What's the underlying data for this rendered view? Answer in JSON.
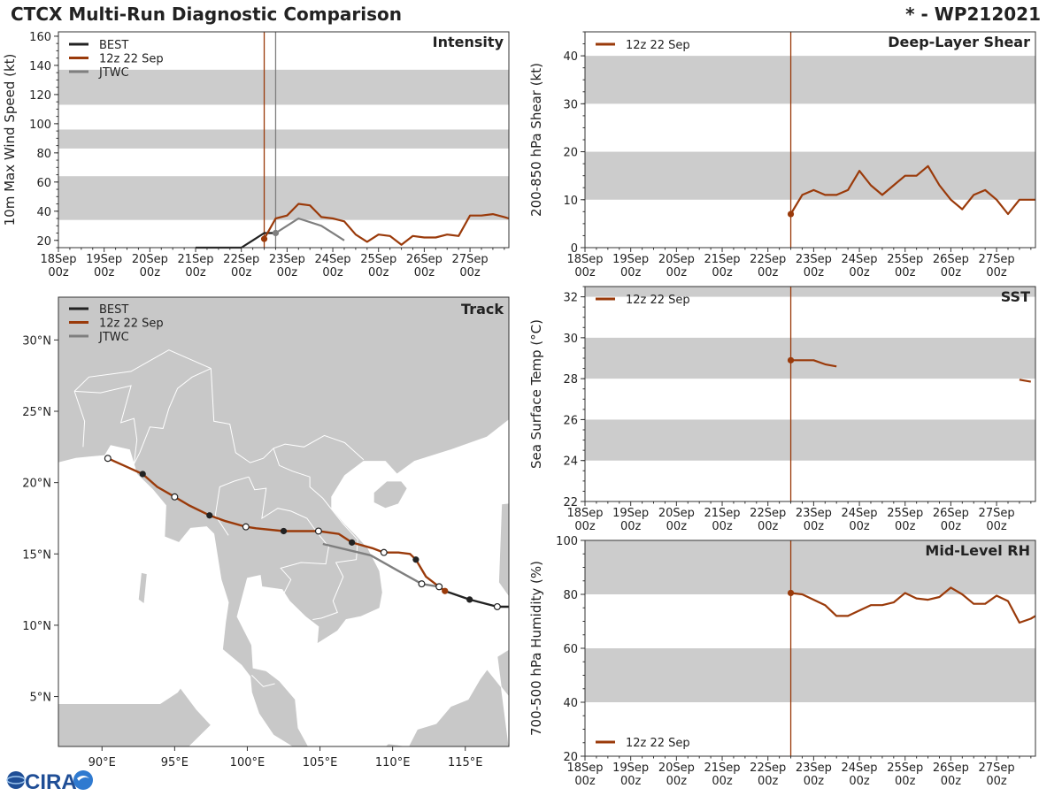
{
  "header": {
    "title": "CTCX Multi-Run Diagnostic Comparison",
    "storm": "* - WP212021"
  },
  "colors": {
    "best": "#222222",
    "run": "#9a3a0a",
    "jtwc": "#7f7f7f",
    "band": "#cccccc",
    "land": "#c8c8c8"
  },
  "time_ticks": [
    "18Sep\n00z",
    "19Sep\n00z",
    "20Sep\n00z",
    "21Sep\n00z",
    "22Sep\n00z",
    "23Sep\n00z",
    "24Sep\n00z",
    "25Sep\n00z",
    "26Sep\n00z",
    "27Sep\n00z"
  ],
  "logo_text": "CIRA",
  "chart_data": [
    {
      "id": "intensity",
      "type": "line",
      "title": "Intensity",
      "ylabel": "10m Max Wind Speed (kt)",
      "xlim": [
        0,
        9.85
      ],
      "ylim": [
        15,
        163
      ],
      "yticks": [
        20,
        40,
        60,
        80,
        100,
        120,
        140,
        160
      ],
      "bands": [
        [
          34,
          64
        ],
        [
          83,
          96
        ],
        [
          113,
          137
        ]
      ],
      "legend": [
        "BEST",
        "12z 22 Sep",
        "JTWC"
      ],
      "vlines": [
        {
          "x": 4.5,
          "series": "run"
        },
        {
          "x": 4.75,
          "series": "jtwc"
        }
      ],
      "series": [
        {
          "name": "BEST",
          "key": "best",
          "x": [
            3,
            3.25,
            3.5,
            3.75,
            4,
            4.25,
            4.5,
            4.75
          ],
          "y": [
            15,
            15,
            15,
            15,
            15,
            20,
            25,
            25
          ]
        },
        {
          "name": "12z 22 Sep",
          "key": "run",
          "x": [
            4.5,
            4.75,
            5,
            5.25,
            5.5,
            5.75,
            6,
            6.25,
            6.5,
            6.75,
            7,
            7.25,
            7.5,
            7.75,
            8,
            8.25,
            8.5,
            8.75,
            9,
            9.25,
            9.5,
            9.75,
            9.85
          ],
          "y": [
            21,
            35,
            37,
            45,
            44,
            36,
            35,
            33,
            24,
            19,
            24,
            23,
            17,
            23,
            22,
            22,
            24,
            23,
            37,
            37,
            38,
            36,
            35
          ],
          "first_marker": true
        },
        {
          "name": "JTWC",
          "key": "jtwc",
          "x": [
            4.75,
            5.25,
            5.75,
            6.25
          ],
          "y": [
            25,
            35,
            30,
            20
          ],
          "first_marker": true
        }
      ]
    },
    {
      "id": "shear",
      "type": "line",
      "title": "Deep-Layer Shear",
      "ylabel": "200-850 hPa Shear (kt)",
      "xlim": [
        0,
        9.85
      ],
      "ylim": [
        0,
        45
      ],
      "yticks": [
        0,
        10,
        20,
        30,
        40
      ],
      "bands": [
        [
          10,
          20
        ],
        [
          30,
          40
        ]
      ],
      "legend": [
        "12z 22 Sep"
      ],
      "legend_pos": "top-left",
      "vlines": [
        {
          "x": 4.5,
          "series": "run"
        }
      ],
      "series": [
        {
          "name": "12z 22 Sep",
          "key": "run",
          "x": [
            4.5,
            4.75,
            5,
            5.25,
            5.5,
            5.75,
            6,
            6.25,
            6.5,
            6.75,
            7,
            7.25,
            7.5,
            7.75,
            8,
            8.25,
            8.5,
            8.75,
            9,
            9.25,
            9.5,
            9.75,
            9.85
          ],
          "y": [
            7,
            11,
            12,
            11,
            11,
            12,
            16,
            13,
            11,
            13,
            15,
            15,
            17,
            13,
            10,
            8,
            11,
            12,
            10,
            7,
            10,
            10,
            10
          ],
          "first_marker": true
        }
      ]
    },
    {
      "id": "sst",
      "type": "line",
      "title": "SST",
      "ylabel": "Sea Surface Temp (°C)",
      "xlim": [
        0,
        9.85
      ],
      "ylim": [
        22,
        32.5
      ],
      "yticks": [
        22,
        24,
        26,
        28,
        30,
        32
      ],
      "bands": [
        [
          24,
          26
        ],
        [
          28,
          30
        ],
        [
          32,
          32.5
        ]
      ],
      "legend": [
        "12z 22 Sep"
      ],
      "legend_pos": "top-left",
      "vlines": [
        {
          "x": 4.5,
          "series": "run"
        }
      ],
      "series": [
        {
          "name": "12z 22 Sep",
          "key": "run",
          "x": [
            4.5,
            4.75,
            5,
            5.25,
            5.5
          ],
          "y": [
            28.9,
            28.9,
            28.9,
            28.7,
            28.6
          ],
          "first_marker": true
        },
        {
          "name": "12z 22 Sep (late)",
          "key": "run",
          "x": [
            9.5,
            9.75
          ],
          "y": [
            27.95,
            27.85
          ]
        }
      ]
    },
    {
      "id": "rh",
      "type": "line",
      "title": "Mid-Level RH",
      "ylabel": "700-500 hPa Humidity (%)",
      "xlim": [
        0,
        9.85
      ],
      "ylim": [
        20,
        100
      ],
      "yticks": [
        20,
        40,
        60,
        80,
        100
      ],
      "bands": [
        [
          40,
          60
        ],
        [
          80,
          100
        ]
      ],
      "legend": [
        "12z 22 Sep"
      ],
      "legend_pos": "bottom-left",
      "vlines": [
        {
          "x": 4.5,
          "series": "run"
        }
      ],
      "series": [
        {
          "name": "12z 22 Sep",
          "key": "run",
          "x": [
            4.5,
            4.75,
            5,
            5.25,
            5.5,
            5.75,
            6,
            6.25,
            6.5,
            6.75,
            7,
            7.25,
            7.5,
            7.75,
            8,
            8.25,
            8.5,
            8.75,
            9,
            9.25,
            9.5,
            9.75,
            9.85
          ],
          "y": [
            80.5,
            80,
            78,
            76,
            72,
            72,
            74,
            76,
            76,
            77,
            80.5,
            78.5,
            78,
            79,
            82.5,
            80,
            76.5,
            76.5,
            79.5,
            77.5,
            69.5,
            71,
            72
          ],
          "first_marker": true
        }
      ]
    },
    {
      "id": "track",
      "type": "scatter",
      "title": "Track",
      "xlim": [
        87,
        118
      ],
      "ylim": [
        1.5,
        33
      ],
      "lon_ticks": [
        90,
        95,
        100,
        105,
        110,
        115
      ],
      "lon_labels": [
        "90°E",
        "95°E",
        "100°E",
        "105°E",
        "110°E",
        "115°E"
      ],
      "lat_ticks": [
        5,
        10,
        15,
        20,
        25,
        30
      ],
      "lat_labels": [
        "5°N",
        "10°N",
        "15°N",
        "20°N",
        "25°N",
        "30°N"
      ],
      "legend": [
        "BEST",
        "12z 22 Sep",
        "JTWC"
      ],
      "series": [
        {
          "name": "BEST",
          "key": "best",
          "lon": [
            118,
            117.2,
            115.3,
            113.6
          ],
          "lat": [
            11.3,
            11.3,
            11.8,
            12.4
          ]
        },
        {
          "name": "12z 22 Sep",
          "key": "run",
          "lon": [
            113.6,
            113.2,
            112.3,
            111.6,
            111.2,
            110.4,
            109.4,
            108.6,
            107.2,
            106.3,
            104.9,
            103.2,
            102.5,
            100.6,
            99.9,
            98.5,
            97.4,
            96.0,
            95.0,
            93.8,
            92.8,
            91.5,
            90.4
          ],
          "lat": [
            12.4,
            12.7,
            13.4,
            14.6,
            15.0,
            15.1,
            15.1,
            15.4,
            15.8,
            16.4,
            16.6,
            16.6,
            16.6,
            16.8,
            16.9,
            17.3,
            17.7,
            18.4,
            19.0,
            19.7,
            20.6,
            21.2,
            21.7
          ],
          "solid_idx": [
            3,
            8,
            12,
            16,
            20
          ],
          "open_idx": [
            6,
            10,
            14,
            18,
            22
          ]
        },
        {
          "name": "JTWC",
          "key": "jtwc",
          "lon": [
            113.2,
            112.0,
            110.4,
            108.5,
            105.2
          ],
          "lat": [
            12.7,
            12.9,
            13.8,
            14.9,
            15.7
          ],
          "open_idx": [
            0,
            1
          ],
          "solid_idx": []
        }
      ],
      "best_open_idx": [
        1
      ],
      "best_solid_idx": [
        2
      ]
    }
  ]
}
